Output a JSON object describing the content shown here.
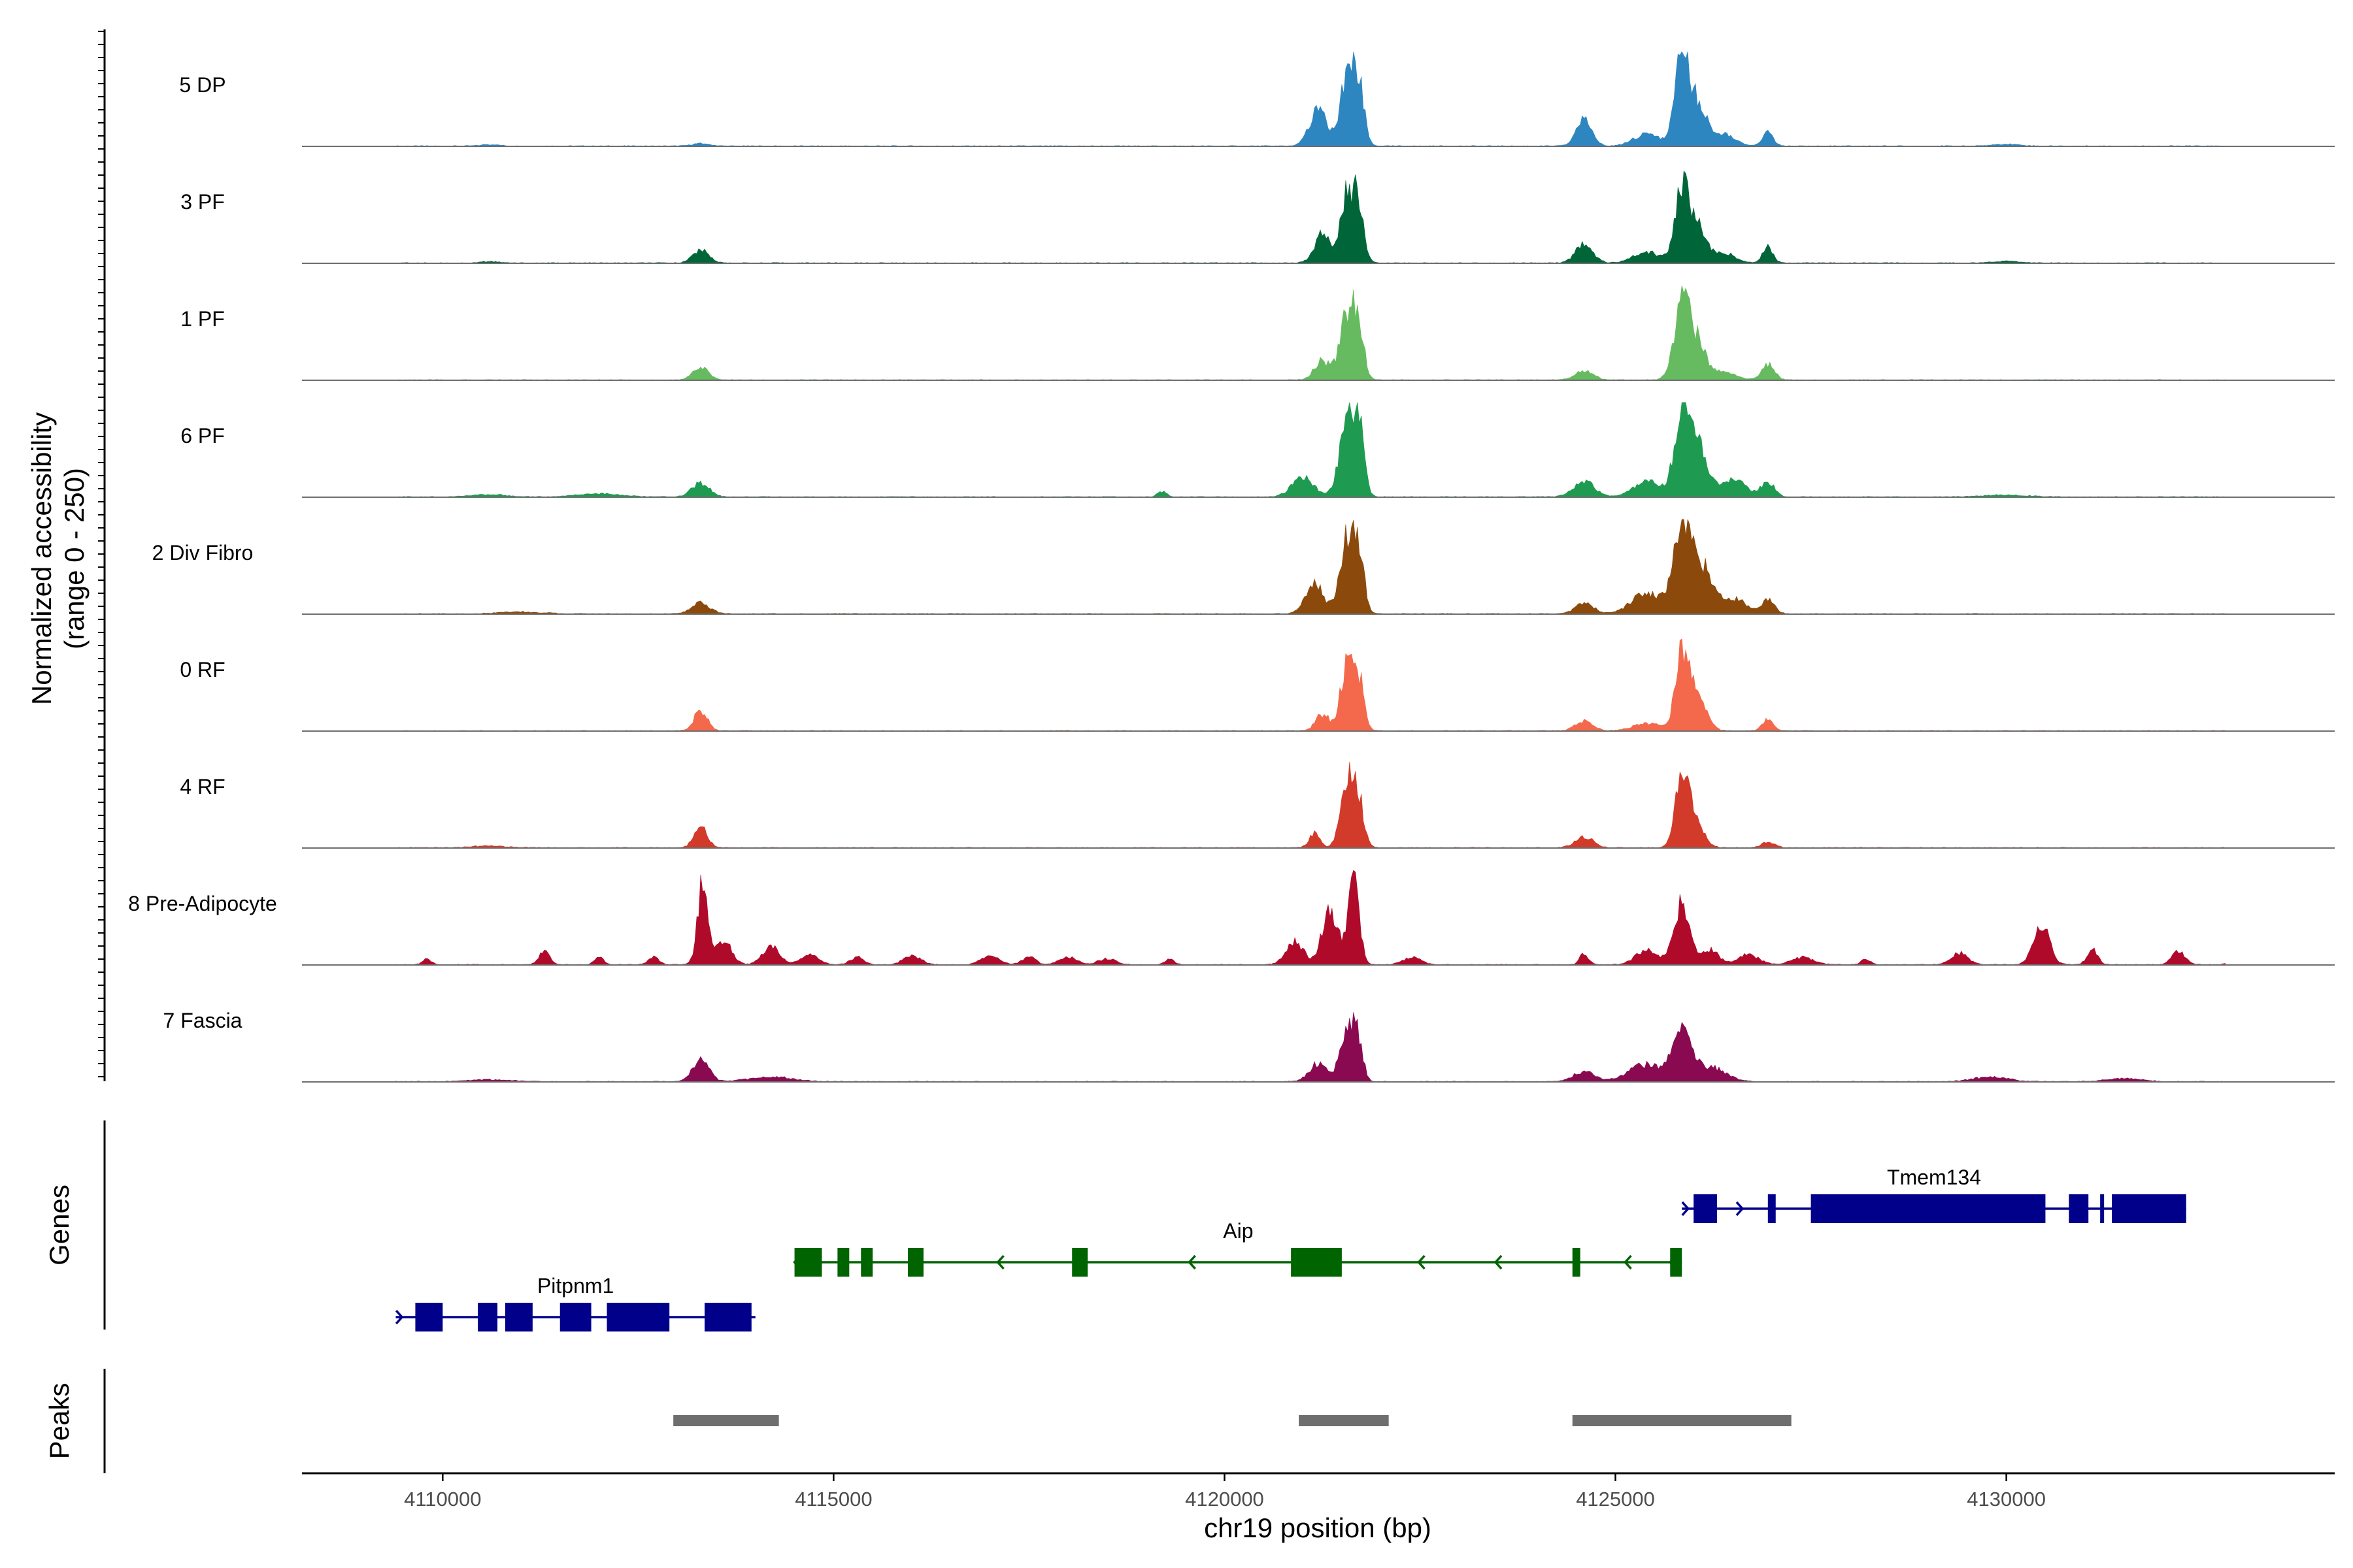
{
  "chart_data": {
    "type": "area",
    "title": "",
    "xlabel": "chr19 position (bp)",
    "ylabel": "Normalized accessibility",
    "ylabel_sub": "(range 0 - 250)",
    "yrange": [
      0,
      250
    ],
    "xlim": [
      4108200,
      4134200
    ],
    "xticks": [
      4110000,
      4115000,
      4120000,
      4125000,
      4130000
    ],
    "panels": {
      "genes_label": "Genes",
      "peaks_label": "Peaks"
    },
    "tracks": [
      {
        "name": "5 DP",
        "color": "#2E86C1",
        "peaks": [
          [
            4110600,
            4,
            0.2
          ],
          [
            4113300,
            6,
            0.2
          ],
          [
            4121200,
            95,
            0.2
          ],
          [
            4121570,
            190,
            0.15
          ],
          [
            4121720,
            160,
            0.12
          ],
          [
            4124600,
            70,
            0.18
          ],
          [
            4125400,
            32,
            0.3
          ],
          [
            4125850,
            220,
            0.16
          ],
          [
            4126050,
            110,
            0.2
          ],
          [
            4126400,
            30,
            0.25
          ],
          [
            4126950,
            35,
            0.12
          ],
          [
            4130000,
            5,
            0.3
          ]
        ]
      },
      {
        "name": "3 PF",
        "color": "#00663A",
        "peaks": [
          [
            4110600,
            4,
            0.2
          ],
          [
            4113300,
            35,
            0.18
          ],
          [
            4121250,
            75,
            0.18
          ],
          [
            4121570,
            180,
            0.15
          ],
          [
            4121720,
            140,
            0.12
          ],
          [
            4124600,
            50,
            0.2
          ],
          [
            4125400,
            30,
            0.3
          ],
          [
            4125850,
            195,
            0.16
          ],
          [
            4126050,
            100,
            0.2
          ],
          [
            4126400,
            25,
            0.25
          ],
          [
            4126950,
            40,
            0.12
          ],
          [
            4130000,
            5,
            0.3
          ]
        ]
      },
      {
        "name": "1 PF",
        "color": "#66BB60",
        "peaks": [
          [
            4113300,
            32,
            0.18
          ],
          [
            4121250,
            50,
            0.18
          ],
          [
            4121570,
            180,
            0.16
          ],
          [
            4121720,
            130,
            0.12
          ],
          [
            4124600,
            25,
            0.2
          ],
          [
            4125850,
            190,
            0.18
          ],
          [
            4126050,
            95,
            0.2
          ],
          [
            4126400,
            20,
            0.25
          ],
          [
            4126950,
            40,
            0.15
          ]
        ]
      },
      {
        "name": "6 PF",
        "color": "#1E9B50",
        "peaks": [
          [
            4110600,
            6,
            0.4
          ],
          [
            4112000,
            8,
            0.5
          ],
          [
            4113300,
            35,
            0.2
          ],
          [
            4119200,
            15,
            0.1
          ],
          [
            4121000,
            50,
            0.25
          ],
          [
            4121570,
            200,
            0.18
          ],
          [
            4121720,
            170,
            0.12
          ],
          [
            4124600,
            40,
            0.25
          ],
          [
            4125400,
            40,
            0.3
          ],
          [
            4125850,
            200,
            0.18
          ],
          [
            4126050,
            130,
            0.22
          ],
          [
            4126500,
            45,
            0.3
          ],
          [
            4126950,
            40,
            0.15
          ],
          [
            4130000,
            5,
            0.5
          ]
        ]
      },
      {
        "name": "2 Div Fibro",
        "color": "#8B4A0B",
        "peaks": [
          [
            4111000,
            5,
            0.5
          ],
          [
            4113300,
            30,
            0.2
          ],
          [
            4121150,
            80,
            0.2
          ],
          [
            4121570,
            200,
            0.17
          ],
          [
            4121720,
            150,
            0.12
          ],
          [
            4124600,
            30,
            0.2
          ],
          [
            4125400,
            55,
            0.35
          ],
          [
            4125850,
            225,
            0.2
          ],
          [
            4126100,
            120,
            0.25
          ],
          [
            4126500,
            40,
            0.3
          ],
          [
            4126950,
            35,
            0.15
          ]
        ]
      },
      {
        "name": "0 RF",
        "color": "#F4694B",
        "peaks": [
          [
            4113300,
            55,
            0.15
          ],
          [
            4121250,
            45,
            0.15
          ],
          [
            4121570,
            185,
            0.15
          ],
          [
            4121720,
            120,
            0.12
          ],
          [
            4124600,
            25,
            0.2
          ],
          [
            4125400,
            20,
            0.3
          ],
          [
            4125850,
            200,
            0.15
          ],
          [
            4126050,
            90,
            0.2
          ],
          [
            4126950,
            30,
            0.12
          ]
        ]
      },
      {
        "name": "4 RF",
        "color": "#D23A2A",
        "peaks": [
          [
            4110600,
            5,
            0.4
          ],
          [
            4113300,
            55,
            0.15
          ],
          [
            4121150,
            40,
            0.12
          ],
          [
            4121570,
            175,
            0.15
          ],
          [
            4121720,
            110,
            0.12
          ],
          [
            4124600,
            30,
            0.2
          ],
          [
            4125850,
            175,
            0.15
          ],
          [
            4126000,
            80,
            0.2
          ],
          [
            4126950,
            15,
            0.15
          ]
        ]
      },
      {
        "name": "8 Pre-Adipocyte",
        "color": "#B00A2B",
        "peaks": [
          [
            4109800,
            15,
            0.1
          ],
          [
            4111300,
            35,
            0.12
          ],
          [
            4112000,
            20,
            0.1
          ],
          [
            4112700,
            20,
            0.12
          ],
          [
            4113330,
            215,
            0.12
          ],
          [
            4113600,
            60,
            0.18
          ],
          [
            4114200,
            45,
            0.2
          ],
          [
            4114700,
            25,
            0.2
          ],
          [
            4115300,
            20,
            0.15
          ],
          [
            4116000,
            25,
            0.2
          ],
          [
            4117000,
            25,
            0.2
          ],
          [
            4117500,
            20,
            0.15
          ],
          [
            4118000,
            20,
            0.2
          ],
          [
            4118500,
            15,
            0.2
          ],
          [
            4119300,
            15,
            0.1
          ],
          [
            4120900,
            60,
            0.2
          ],
          [
            4121350,
            150,
            0.18
          ],
          [
            4121650,
            220,
            0.13
          ],
          [
            4122400,
            20,
            0.2
          ],
          [
            4124600,
            30,
            0.1
          ],
          [
            4125400,
            40,
            0.25
          ],
          [
            4125850,
            160,
            0.18
          ],
          [
            4126200,
            40,
            0.2
          ],
          [
            4126700,
            25,
            0.25
          ],
          [
            4127400,
            20,
            0.25
          ],
          [
            4128200,
            15,
            0.1
          ],
          [
            4129400,
            30,
            0.2
          ],
          [
            4130450,
            105,
            0.18
          ],
          [
            4131100,
            40,
            0.12
          ],
          [
            4132200,
            35,
            0.15
          ],
          [
            4132900,
            15,
            0.1
          ]
        ]
      },
      {
        "name": "7 Fascia",
        "color": "#8A0A52",
        "peaks": [
          [
            4110600,
            5,
            0.5
          ],
          [
            4113300,
            60,
            0.18
          ],
          [
            4114200,
            12,
            0.5
          ],
          [
            4121200,
            50,
            0.2
          ],
          [
            4121570,
            130,
            0.16
          ],
          [
            4121700,
            100,
            0.12
          ],
          [
            4124600,
            25,
            0.25
          ],
          [
            4125400,
            45,
            0.4
          ],
          [
            4125850,
            130,
            0.2
          ],
          [
            4126200,
            40,
            0.35
          ],
          [
            4129800,
            12,
            0.4
          ],
          [
            4131500,
            8,
            0.4
          ]
        ]
      }
    ],
    "genes": [
      {
        "name": "Pitpnm1",
        "color": "#00008B",
        "strand": "+",
        "row": 2,
        "start": 4109400,
        "end": 4114000,
        "exons": [
          [
            4109650,
            4110000
          ],
          [
            4110450,
            4110700
          ],
          [
            4110800,
            4111150
          ],
          [
            4111500,
            4111900
          ],
          [
            4112100,
            4112900
          ],
          [
            4113350,
            4113950
          ]
        ]
      },
      {
        "name": "Aip",
        "color": "#006400",
        "strand": "-",
        "row": 1,
        "start": 4114500,
        "end": 4125850,
        "exons": [
          [
            4114500,
            4114850
          ],
          [
            4115050,
            4115200
          ],
          [
            4115350,
            4115500
          ],
          [
            4115950,
            4116150
          ],
          [
            4118050,
            4118250
          ],
          [
            4120850,
            4121500
          ],
          [
            4124450,
            4124550
          ],
          [
            4125700,
            4125850
          ]
        ]
      },
      {
        "name": "Tmem134",
        "color": "#00008B",
        "strand": "+",
        "row": 0,
        "start": 4125850,
        "end": 4132300,
        "exons": [
          [
            4126000,
            4126300
          ],
          [
            4126950,
            4127050
          ],
          [
            4127500,
            4130500
          ],
          [
            4130800,
            4131050
          ],
          [
            4131200,
            4131250
          ],
          [
            4131350,
            4132300
          ]
        ]
      }
    ],
    "peaks_regions": [
      [
        4112950,
        4114300
      ],
      [
        4120950,
        4122100
      ],
      [
        4124450,
        4127250
      ]
    ]
  }
}
